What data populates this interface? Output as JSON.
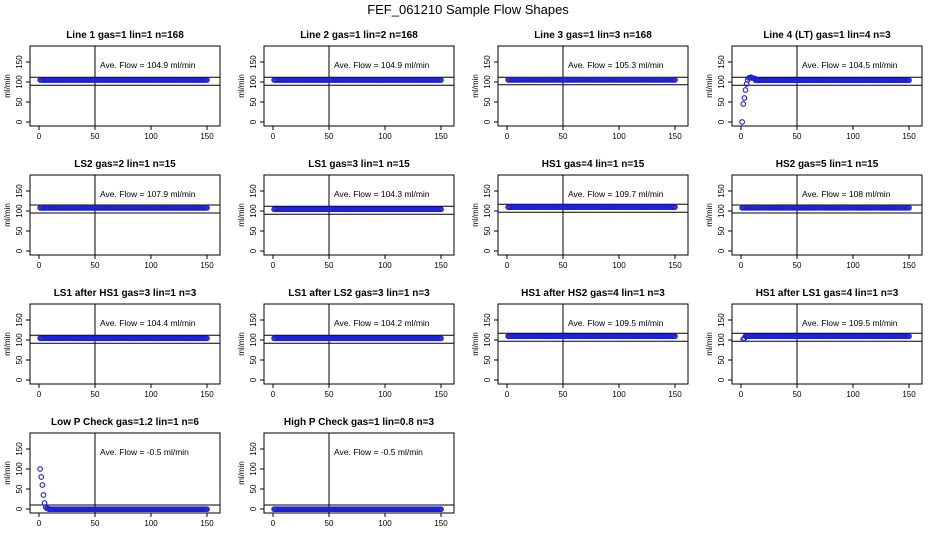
{
  "figure": {
    "title": "FEF_061210  Sample Flow Shapes"
  },
  "colors": {
    "marker": "#1f1fd8",
    "axis": "#000000"
  },
  "chart_data": [
    {
      "type": "scatter",
      "title": "Line 1 gas=1 lin=1 n=168",
      "ylabel": "ml/min",
      "annotation": "Ave. Flow =  104.9  ml/min",
      "xlim": [
        0,
        150
      ],
      "ylim": [
        -10,
        190
      ],
      "x_ticks": [
        0,
        50,
        100,
        150
      ],
      "y_ticks": [
        0,
        50,
        100,
        150
      ],
      "vline": 50,
      "hlines": [
        92,
        112
      ],
      "shape": "flat",
      "level": 104.9
    },
    {
      "type": "scatter",
      "title": "Line 2 gas=1 lin=2 n=168",
      "ylabel": "ml/min",
      "annotation": "Ave. Flow =  104.9  ml/min",
      "xlim": [
        0,
        150
      ],
      "ylim": [
        -10,
        190
      ],
      "x_ticks": [
        0,
        50,
        100,
        150
      ],
      "y_ticks": [
        0,
        50,
        100,
        150
      ],
      "vline": 50,
      "hlines": [
        92,
        112
      ],
      "shape": "flat",
      "level": 104.9
    },
    {
      "type": "scatter",
      "title": "Line 3 gas=1 lin=3 n=168",
      "ylabel": "ml/min",
      "annotation": "Ave. Flow =  105.3  ml/min",
      "xlim": [
        0,
        150
      ],
      "ylim": [
        -10,
        190
      ],
      "x_ticks": [
        0,
        50,
        100,
        150
      ],
      "y_ticks": [
        0,
        50,
        100,
        150
      ],
      "vline": 50,
      "hlines": [
        93,
        112
      ],
      "shape": "flat",
      "level": 105.3
    },
    {
      "type": "scatter",
      "title": "Line 4 (LT) gas=1 lin=4 n=3",
      "ylabel": "ml/min",
      "annotation": "Ave. Flow =  104.5  ml/min",
      "xlim": [
        0,
        150
      ],
      "ylim": [
        -10,
        190
      ],
      "x_ticks": [
        0,
        50,
        100,
        150
      ],
      "y_ticks": [
        0,
        50,
        100,
        150
      ],
      "vline": 50,
      "hlines": [
        92,
        112
      ],
      "shape": "rise",
      "level": 104.5,
      "lead_points": [
        [
          1,
          0
        ],
        [
          2,
          45
        ],
        [
          3,
          60
        ],
        [
          4,
          80
        ],
        [
          5,
          95
        ],
        [
          6,
          105
        ],
        [
          7,
          110
        ],
        [
          8,
          111
        ],
        [
          9,
          112
        ],
        [
          10,
          110
        ],
        [
          12,
          109
        ]
      ]
    },
    {
      "type": "scatter",
      "title": "LS2 gas=2 lin=1 n=15",
      "ylabel": "ml/min",
      "annotation": "Ave. Flow =  107.9  ml/min",
      "xlim": [
        0,
        150
      ],
      "ylim": [
        -10,
        190
      ],
      "x_ticks": [
        0,
        50,
        100,
        150
      ],
      "y_ticks": [
        0,
        50,
        100,
        150
      ],
      "vline": 50,
      "hlines": [
        95,
        115
      ],
      "shape": "flat",
      "level": 107.9
    },
    {
      "type": "scatter",
      "title": "LS1 gas=3 lin=1 n=15",
      "ylabel": "ml/min",
      "annotation": "Ave. Flow =  104.3  ml/min",
      "xlim": [
        0,
        150
      ],
      "ylim": [
        -10,
        190
      ],
      "x_ticks": [
        0,
        50,
        100,
        150
      ],
      "y_ticks": [
        0,
        50,
        100,
        150
      ],
      "vline": 50,
      "hlines": [
        92,
        112
      ],
      "shape": "flat",
      "level": 104.3
    },
    {
      "type": "scatter",
      "title": "HS1 gas=4 lin=1 n=15",
      "ylabel": "ml/min",
      "annotation": "Ave. Flow =  109.7  ml/min",
      "xlim": [
        0,
        150
      ],
      "ylim": [
        -10,
        190
      ],
      "x_ticks": [
        0,
        50,
        100,
        150
      ],
      "y_ticks": [
        0,
        50,
        100,
        150
      ],
      "vline": 50,
      "hlines": [
        97,
        117
      ],
      "shape": "flat",
      "level": 109.7
    },
    {
      "type": "scatter",
      "title": "HS2 gas=5 lin=1 n=15",
      "ylabel": "ml/min",
      "annotation": "Ave. Flow =  108  ml/min",
      "xlim": [
        0,
        150
      ],
      "ylim": [
        -10,
        190
      ],
      "x_ticks": [
        0,
        50,
        100,
        150
      ],
      "y_ticks": [
        0,
        50,
        100,
        150
      ],
      "vline": 50,
      "hlines": [
        95,
        115
      ],
      "shape": "flat",
      "level": 108
    },
    {
      "type": "scatter",
      "title": "LS1 after HS1 gas=3 lin=1 n=3",
      "ylabel": "ml/min",
      "annotation": "Ave. Flow =  104.4  ml/min",
      "xlim": [
        0,
        150
      ],
      "ylim": [
        -10,
        190
      ],
      "x_ticks": [
        0,
        50,
        100,
        150
      ],
      "y_ticks": [
        0,
        50,
        100,
        150
      ],
      "vline": 50,
      "hlines": [
        92,
        112
      ],
      "shape": "flat",
      "level": 104.4
    },
    {
      "type": "scatter",
      "title": "LS1 after LS2 gas=3 lin=1 n=3",
      "ylabel": "ml/min",
      "annotation": "Ave. Flow =  104.2  ml/min",
      "xlim": [
        0,
        150
      ],
      "ylim": [
        -10,
        190
      ],
      "x_ticks": [
        0,
        50,
        100,
        150
      ],
      "y_ticks": [
        0,
        50,
        100,
        150
      ],
      "vline": 50,
      "hlines": [
        92,
        112
      ],
      "shape": "flat",
      "level": 104.2
    },
    {
      "type": "scatter",
      "title": "HS1 after HS2 gas=4 lin=1 n=3",
      "ylabel": "ml/min",
      "annotation": "Ave. Flow =  109.5  ml/min",
      "xlim": [
        0,
        150
      ],
      "ylim": [
        -10,
        190
      ],
      "x_ticks": [
        0,
        50,
        100,
        150
      ],
      "y_ticks": [
        0,
        50,
        100,
        150
      ],
      "vline": 50,
      "hlines": [
        97,
        117
      ],
      "shape": "flat",
      "level": 109.5
    },
    {
      "type": "scatter",
      "title": "HS1 after LS1 gas=4 lin=1 n=3",
      "ylabel": "ml/min",
      "annotation": "Ave. Flow =  109.5  ml/min",
      "xlim": [
        0,
        150
      ],
      "ylim": [
        -10,
        190
      ],
      "x_ticks": [
        0,
        50,
        100,
        150
      ],
      "y_ticks": [
        0,
        50,
        100,
        150
      ],
      "vline": 50,
      "hlines": [
        97,
        117
      ],
      "shape": "flat",
      "level": 109.5,
      "lead_points": [
        [
          2,
          102
        ],
        [
          3,
          104
        ]
      ]
    },
    {
      "type": "scatter",
      "title": "Low P Check gas=1.2 lin=1 n=6",
      "ylabel": "ml/min",
      "annotation": "Ave. Flow =  -0.5  ml/min",
      "xlim": [
        0,
        150
      ],
      "ylim": [
        -10,
        190
      ],
      "x_ticks": [
        0,
        50,
        100,
        150
      ],
      "y_ticks": [
        0,
        50,
        100,
        150
      ],
      "vline": 50,
      "hlines": [
        -10,
        10
      ],
      "shape": "decay",
      "level": -0.5,
      "lead_points": [
        [
          1,
          100
        ],
        [
          2,
          80
        ],
        [
          3,
          60
        ],
        [
          4,
          35
        ],
        [
          5,
          15
        ],
        [
          6,
          5
        ],
        [
          7,
          2
        ],
        [
          8,
          1
        ]
      ]
    },
    {
      "type": "scatter",
      "title": "High P Check gas=1 lin=0.8 n=3",
      "ylabel": "ml/min",
      "annotation": "Ave. Flow =  -0.5  ml/min",
      "xlim": [
        0,
        150
      ],
      "ylim": [
        -10,
        190
      ],
      "x_ticks": [
        0,
        50,
        100,
        150
      ],
      "y_ticks": [
        0,
        50,
        100,
        150
      ],
      "vline": 50,
      "hlines": [
        -10,
        10
      ],
      "shape": "flat",
      "level": -0.5
    }
  ]
}
